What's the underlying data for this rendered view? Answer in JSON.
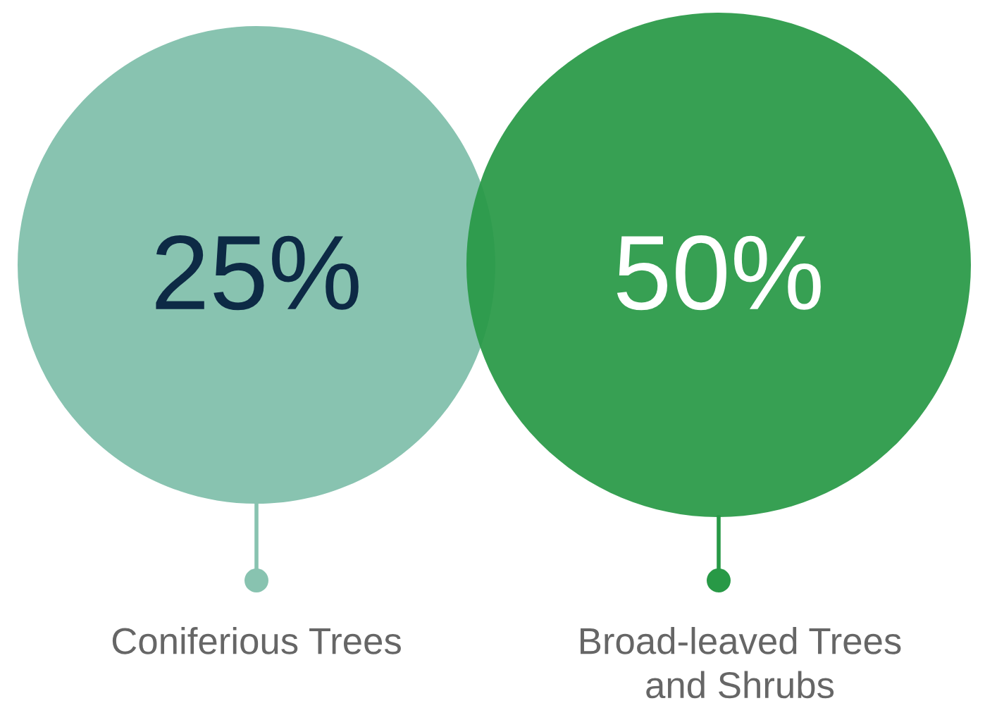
{
  "chart_data": {
    "type": "other",
    "categories": [
      "Coniferious Trees",
      "Broad-leaved Trees\nand Shrubs"
    ],
    "values": [
      25,
      50
    ],
    "value_labels": [
      "25%",
      "50%"
    ],
    "colors": [
      "#88c3b0",
      "#289946"
    ]
  }
}
